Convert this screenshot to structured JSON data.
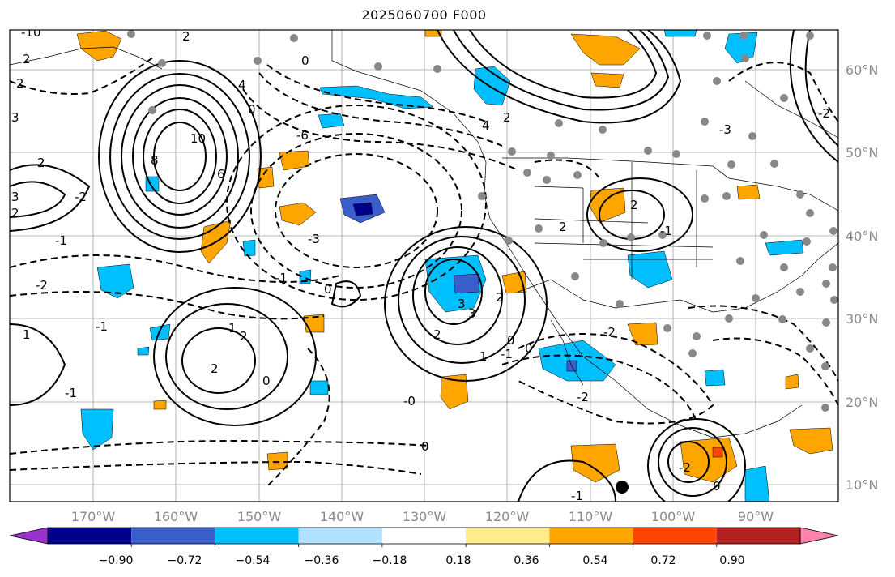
{
  "title": "2025060700 F000",
  "map": {
    "lon_labels": [
      "170°W",
      "160°W",
      "150°W",
      "140°W",
      "130°W",
      "120°W",
      "110°W",
      "100°W",
      "90°W"
    ],
    "lat_labels": [
      "60°N",
      "50°N",
      "40°N",
      "30°N",
      "20°N",
      "10°N"
    ],
    "contour_labels": [
      "-10",
      "2",
      "2",
      "3",
      "2",
      "3",
      "2",
      "10",
      "8",
      "6",
      "4",
      "2",
      "0",
      "0",
      "-6",
      "-3",
      "-2",
      "-1",
      "-2",
      "-1",
      "1",
      "2",
      "3",
      "4",
      "2",
      "-2",
      "0",
      "-1",
      "0",
      "1",
      "2",
      "-1",
      "-2",
      "-1",
      "1",
      "2",
      "0",
      "0",
      "2",
      "2",
      "-1",
      "-3",
      "-2",
      "-2",
      "-0",
      "0",
      "-1",
      "2",
      "3",
      "0"
    ]
  },
  "colorbar": {
    "labels": [
      "−0.90",
      "−0.72",
      "−0.54",
      "−0.36",
      "−0.18",
      "0.18",
      "0.36",
      "0.54",
      "0.72",
      "0.90"
    ],
    "colors": [
      "#9a32cd",
      "#00008b",
      "#3a5fcd",
      "#00bfff",
      "#b0e2ff",
      "#ffffff",
      "#ffec8b",
      "#ffa500",
      "#ff4500",
      "#b22222",
      "#ff82ab"
    ]
  }
}
